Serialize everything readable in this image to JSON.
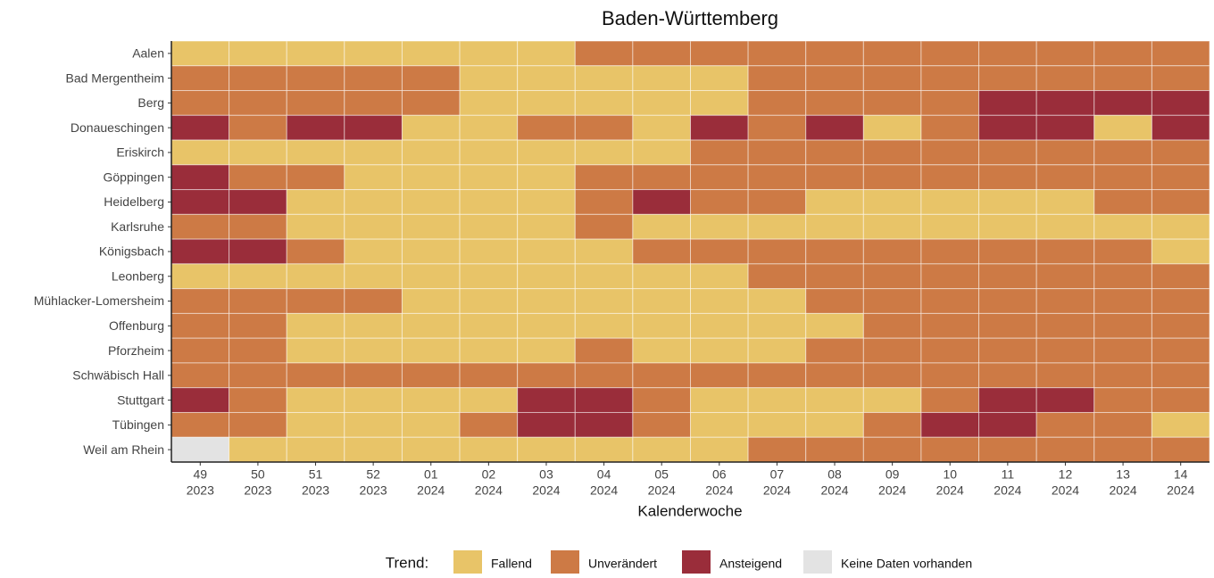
{
  "chart_data": {
    "type": "heatmap",
    "title": "Baden-Württemberg",
    "x_label": "Kalenderwoche",
    "legend_title": "Trend:",
    "legend": [
      {
        "name": "Fallend",
        "color": "#e8c468"
      },
      {
        "name": "Unverändert",
        "color": "#cd7a45"
      },
      {
        "name": "Ansteigend",
        "color": "#9a2d3a"
      },
      {
        "name": "Keine Daten vorhanden",
        "color": "#e3e3e3"
      }
    ],
    "columns": [
      {
        "week": "49",
        "year": "2023"
      },
      {
        "week": "50",
        "year": "2023"
      },
      {
        "week": "51",
        "year": "2023"
      },
      {
        "week": "52",
        "year": "2023"
      },
      {
        "week": "01",
        "year": "2024"
      },
      {
        "week": "02",
        "year": "2024"
      },
      {
        "week": "03",
        "year": "2024"
      },
      {
        "week": "04",
        "year": "2024"
      },
      {
        "week": "05",
        "year": "2024"
      },
      {
        "week": "06",
        "year": "2024"
      },
      {
        "week": "07",
        "year": "2024"
      },
      {
        "week": "08",
        "year": "2024"
      },
      {
        "week": "09",
        "year": "2024"
      },
      {
        "week": "10",
        "year": "2024"
      },
      {
        "week": "11",
        "year": "2024"
      },
      {
        "week": "12",
        "year": "2024"
      },
      {
        "week": "13",
        "year": "2024"
      },
      {
        "week": "14",
        "year": "2024"
      }
    ],
    "rows": [
      "Aalen",
      "Bad Mergentheim",
      "Berg",
      "Donaueschingen",
      "Eriskirch",
      "Göppingen",
      "Heidelberg",
      "Karlsruhe",
      "Königsbach",
      "Leonberg",
      "Mühlacker-Lomersheim",
      "Offenburg",
      "Pforzheim",
      "Schwäbisch Hall",
      "Stuttgart",
      "Tübingen",
      "Weil am Rhein"
    ],
    "cells": [
      [
        "Fallend",
        "Fallend",
        "Fallend",
        "Fallend",
        "Fallend",
        "Fallend",
        "Fallend",
        "Unverändert",
        "Unverändert",
        "Unverändert",
        "Unverändert",
        "Unverändert",
        "Unverändert",
        "Unverändert",
        "Unverändert",
        "Unverändert",
        "Unverändert",
        "Unverändert"
      ],
      [
        "Unverändert",
        "Unverändert",
        "Unverändert",
        "Unverändert",
        "Unverändert",
        "Fallend",
        "Fallend",
        "Fallend",
        "Fallend",
        "Fallend",
        "Unverändert",
        "Unverändert",
        "Unverändert",
        "Unverändert",
        "Unverändert",
        "Unverändert",
        "Unverändert",
        "Unverändert"
      ],
      [
        "Unverändert",
        "Unverändert",
        "Unverändert",
        "Unverändert",
        "Unverändert",
        "Fallend",
        "Fallend",
        "Fallend",
        "Fallend",
        "Fallend",
        "Unverändert",
        "Unverändert",
        "Unverändert",
        "Unverändert",
        "Ansteigend",
        "Ansteigend",
        "Ansteigend",
        "Ansteigend"
      ],
      [
        "Ansteigend",
        "Unverändert",
        "Ansteigend",
        "Ansteigend",
        "Fallend",
        "Fallend",
        "Unverändert",
        "Unverändert",
        "Fallend",
        "Ansteigend",
        "Unverändert",
        "Ansteigend",
        "Fallend",
        "Unverändert",
        "Ansteigend",
        "Ansteigend",
        "Fallend",
        "Ansteigend"
      ],
      [
        "Fallend",
        "Fallend",
        "Fallend",
        "Fallend",
        "Fallend",
        "Fallend",
        "Fallend",
        "Fallend",
        "Fallend",
        "Unverändert",
        "Unverändert",
        "Unverändert",
        "Unverändert",
        "Unverändert",
        "Unverändert",
        "Unverändert",
        "Unverändert",
        "Unverändert"
      ],
      [
        "Ansteigend",
        "Unverändert",
        "Unverändert",
        "Fallend",
        "Fallend",
        "Fallend",
        "Fallend",
        "Unverändert",
        "Unverändert",
        "Unverändert",
        "Unverändert",
        "Unverändert",
        "Unverändert",
        "Unverändert",
        "Unverändert",
        "Unverändert",
        "Unverändert",
        "Unverändert"
      ],
      [
        "Ansteigend",
        "Ansteigend",
        "Fallend",
        "Fallend",
        "Fallend",
        "Fallend",
        "Fallend",
        "Unverändert",
        "Ansteigend",
        "Unverändert",
        "Unverändert",
        "Fallend",
        "Fallend",
        "Fallend",
        "Fallend",
        "Fallend",
        "Unverändert",
        "Unverändert"
      ],
      [
        "Unverändert",
        "Unverändert",
        "Fallend",
        "Fallend",
        "Fallend",
        "Fallend",
        "Fallend",
        "Unverändert",
        "Fallend",
        "Fallend",
        "Fallend",
        "Fallend",
        "Fallend",
        "Fallend",
        "Fallend",
        "Fallend",
        "Fallend",
        "Fallend"
      ],
      [
        "Ansteigend",
        "Ansteigend",
        "Unverändert",
        "Fallend",
        "Fallend",
        "Fallend",
        "Fallend",
        "Fallend",
        "Unverändert",
        "Unverändert",
        "Unverändert",
        "Unverändert",
        "Unverändert",
        "Unverändert",
        "Unverändert",
        "Unverändert",
        "Unverändert",
        "Fallend"
      ],
      [
        "Fallend",
        "Fallend",
        "Fallend",
        "Fallend",
        "Fallend",
        "Fallend",
        "Fallend",
        "Fallend",
        "Fallend",
        "Fallend",
        "Unverändert",
        "Unverändert",
        "Unverändert",
        "Unverändert",
        "Unverändert",
        "Unverändert",
        "Unverändert",
        "Unverändert"
      ],
      [
        "Unverändert",
        "Unverändert",
        "Unverändert",
        "Unverändert",
        "Fallend",
        "Fallend",
        "Fallend",
        "Fallend",
        "Fallend",
        "Fallend",
        "Fallend",
        "Unverändert",
        "Unverändert",
        "Unverändert",
        "Unverändert",
        "Unverändert",
        "Unverändert",
        "Unverändert"
      ],
      [
        "Unverändert",
        "Unverändert",
        "Fallend",
        "Fallend",
        "Fallend",
        "Fallend",
        "Fallend",
        "Fallend",
        "Fallend",
        "Fallend",
        "Fallend",
        "Fallend",
        "Unverändert",
        "Unverändert",
        "Unverändert",
        "Unverändert",
        "Unverändert",
        "Unverändert"
      ],
      [
        "Unverändert",
        "Unverändert",
        "Fallend",
        "Fallend",
        "Fallend",
        "Fallend",
        "Fallend",
        "Unverändert",
        "Fallend",
        "Fallend",
        "Fallend",
        "Unverändert",
        "Unverändert",
        "Unverändert",
        "Unverändert",
        "Unverändert",
        "Unverändert",
        "Unverändert"
      ],
      [
        "Unverändert",
        "Unverändert",
        "Unverändert",
        "Unverändert",
        "Unverändert",
        "Unverändert",
        "Unverändert",
        "Unverändert",
        "Unverändert",
        "Unverändert",
        "Unverändert",
        "Unverändert",
        "Unverändert",
        "Unverändert",
        "Unverändert",
        "Unverändert",
        "Unverändert",
        "Unverändert"
      ],
      [
        "Ansteigend",
        "Unverändert",
        "Fallend",
        "Fallend",
        "Fallend",
        "Fallend",
        "Ansteigend",
        "Ansteigend",
        "Unverändert",
        "Fallend",
        "Fallend",
        "Fallend",
        "Fallend",
        "Unverändert",
        "Ansteigend",
        "Ansteigend",
        "Unverändert",
        "Unverändert"
      ],
      [
        "Unverändert",
        "Unverändert",
        "Fallend",
        "Fallend",
        "Fallend",
        "Unverändert",
        "Ansteigend",
        "Ansteigend",
        "Unverändert",
        "Fallend",
        "Fallend",
        "Fallend",
        "Unverändert",
        "Ansteigend",
        "Ansteigend",
        "Unverändert",
        "Unverändert",
        "Fallend"
      ],
      [
        "Keine Daten vorhanden",
        "Fallend",
        "Fallend",
        "Fallend",
        "Fallend",
        "Fallend",
        "Fallend",
        "Fallend",
        "Fallend",
        "Fallend",
        "Unverändert",
        "Unverändert",
        "Unverändert",
        "Unverändert",
        "Unverändert",
        "Unverändert",
        "Unverändert",
        "Unverändert"
      ]
    ]
  }
}
